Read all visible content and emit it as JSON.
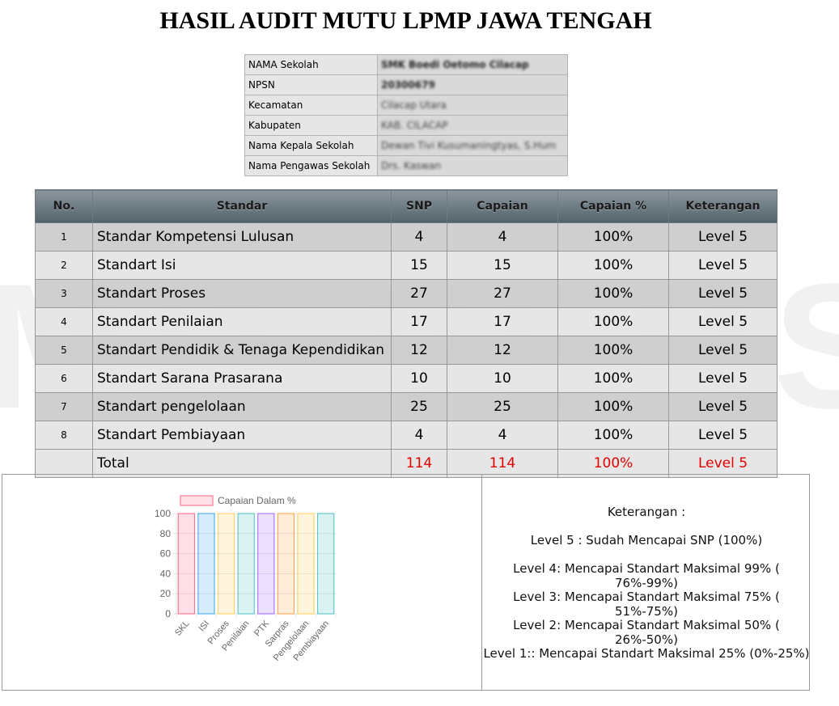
{
  "watermark": "MD VERSI",
  "title": "HASIL AUDIT MUTU LPMP JAWA TENGAH",
  "info": [
    {
      "label": "NAMA Sekolah",
      "value": "SMK Boedi Oetomo Cilacap"
    },
    {
      "label": "NPSN",
      "value": "20300679"
    },
    {
      "label": "Kecamatan",
      "value": "Cilacap Utara"
    },
    {
      "label": "Kabupaten",
      "value": "KAB. CILACAP"
    },
    {
      "label": "Nama Kepala Sekolah",
      "value": "Dewan Tivi Kusumaningtyas, S.Hum"
    },
    {
      "label": "Nama Pengawas Sekolah",
      "value": "Drs. Kaswan"
    }
  ],
  "table": {
    "headers": [
      "No.",
      "Standar",
      "SNP",
      "Capaian",
      "Capaian %",
      "Keterangan"
    ],
    "rows": [
      {
        "no": "1",
        "standar": "Standar Kompetensi Lulusan",
        "snp": "4",
        "capaian": "4",
        "persen": "100%",
        "ket": "Level 5"
      },
      {
        "no": "2",
        "standar": "Standart Isi",
        "snp": "15",
        "capaian": "15",
        "persen": "100%",
        "ket": "Level 5"
      },
      {
        "no": "3",
        "standar": "Standart Proses",
        "snp": "27",
        "capaian": "27",
        "persen": "100%",
        "ket": "Level 5"
      },
      {
        "no": "4",
        "standar": "Standart Penilaian",
        "snp": "17",
        "capaian": "17",
        "persen": "100%",
        "ket": "Level 5"
      },
      {
        "no": "5",
        "standar": "Standart Pendidik & Tenaga Kependidikan",
        "snp": "12",
        "capaian": "12",
        "persen": "100%",
        "ket": "Level 5"
      },
      {
        "no": "6",
        "standar": "Standart Sarana Prasarana",
        "snp": "10",
        "capaian": "10",
        "persen": "100%",
        "ket": "Level 5"
      },
      {
        "no": "7",
        "standar": "Standart pengelolaan",
        "snp": "25",
        "capaian": "25",
        "persen": "100%",
        "ket": "Level 5"
      },
      {
        "no": "8",
        "standar": "Standart Pembiayaan",
        "snp": "4",
        "capaian": "4",
        "persen": "100%",
        "ket": "Level 5"
      }
    ],
    "total": {
      "label": "Total",
      "snp": "114",
      "capaian": "114",
      "persen": "100%",
      "ket": "Level 5"
    }
  },
  "colors": {
    "total_text": "#e00000",
    "header_top": "#8b979d",
    "header_bottom": "#53626a"
  },
  "keterangan": {
    "title": "Keterangan :",
    "items": [
      "Level 5 : Sudah Mencapai SNP (100%)",
      "Level 4: Mencapai Standart Maksimal 99% ( 76%-99%)",
      "Level 3: Mencapai Standart Maksimal 75% ( 51%-75%)",
      "Level 2: Mencapai Standart Maksimal 50% ( 26%-50%)",
      "Level 1:: Mencapai Standart Maksimal 25% (0%-25%)"
    ]
  },
  "chart_data": {
    "type": "bar",
    "categories": [
      "SKL",
      "ISI",
      "Proses",
      "Penilaian",
      "PTK",
      "Sarpras",
      "Pengelolaan",
      "Pembiayaan"
    ],
    "series": [
      {
        "name": "Capaian Dalam %",
        "values": [
          100,
          100,
          100,
          100,
          100,
          100,
          100,
          100
        ]
      }
    ],
    "ylim": [
      0,
      100
    ],
    "yticks": [
      0,
      20,
      40,
      60,
      80,
      100
    ],
    "legend": "top",
    "grid": true,
    "bar_colors": [
      {
        "fill": "rgba(255,99,132,0.2)",
        "stroke": "rgb(255,99,132)"
      },
      {
        "fill": "rgba(54,162,235,0.2)",
        "stroke": "rgb(54,162,235)"
      },
      {
        "fill": "rgba(255,206,86,0.2)",
        "stroke": "rgb(255,206,86)"
      },
      {
        "fill": "rgba(75,192,192,0.2)",
        "stroke": "rgb(75,192,192)"
      },
      {
        "fill": "rgba(153,102,255,0.2)",
        "stroke": "rgb(153,102,255)"
      },
      {
        "fill": "rgba(255,159,64,0.2)",
        "stroke": "rgb(255,159,64)"
      },
      {
        "fill": "rgba(255,206,86,0.2)",
        "stroke": "rgb(255,206,86)"
      },
      {
        "fill": "rgba(75,192,192,0.2)",
        "stroke": "rgb(75,192,192)"
      }
    ]
  }
}
